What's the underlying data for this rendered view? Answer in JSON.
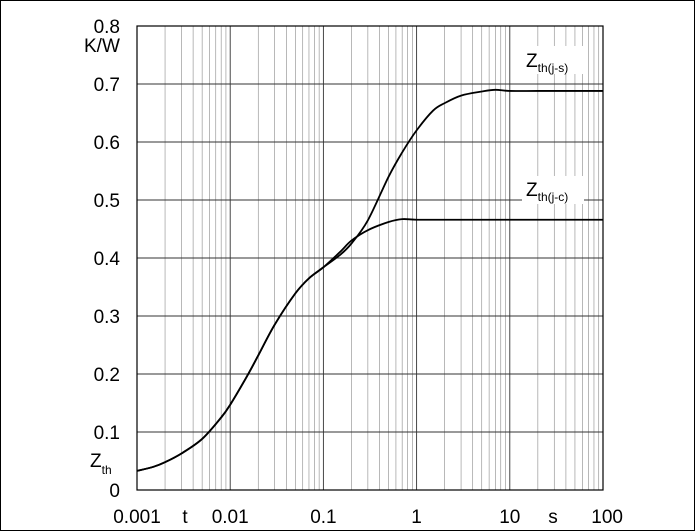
{
  "chart_data": {
    "type": "line",
    "xscale": "log",
    "xlim": [
      0.001,
      100
    ],
    "ylim": [
      0,
      0.8
    ],
    "grid": true,
    "y_unit": "K/W",
    "x_unit": "s",
    "ylabel_main": "Z",
    "ylabel_sub": "th",
    "xlabel": "t",
    "x_ticks": [
      "0.001",
      "0.01",
      "0.1",
      "1",
      "10",
      "100"
    ],
    "y_ticks": [
      "0",
      "0.1",
      "0.2",
      "0.3",
      "0.4",
      "0.5",
      "0.6",
      "0.7",
      "0.8"
    ],
    "series": [
      {
        "name_main": "Z",
        "name_sub": "th(j-s)",
        "x": [
          0.001,
          0.0015,
          0.002,
          0.003,
          0.005,
          0.008,
          0.01,
          0.015,
          0.02,
          0.03,
          0.05,
          0.07,
          0.1,
          0.15,
          0.2,
          0.3,
          0.5,
          0.7,
          1,
          1.5,
          2,
          3,
          5,
          7,
          10,
          20,
          50,
          100
        ],
        "y": [
          0.033,
          0.04,
          0.048,
          0.063,
          0.088,
          0.125,
          0.147,
          0.195,
          0.232,
          0.285,
          0.339,
          0.365,
          0.384,
          0.405,
          0.425,
          0.465,
          0.54,
          0.582,
          0.62,
          0.654,
          0.667,
          0.68,
          0.687,
          0.69,
          0.688,
          0.688,
          0.688,
          0.688
        ]
      },
      {
        "name_main": "Z",
        "name_sub": "th(j-c)",
        "x": [
          0.001,
          0.0015,
          0.002,
          0.003,
          0.005,
          0.008,
          0.01,
          0.015,
          0.02,
          0.03,
          0.05,
          0.07,
          0.1,
          0.15,
          0.2,
          0.3,
          0.5,
          0.7,
          1,
          2,
          5,
          10,
          100
        ],
        "y": [
          0.033,
          0.04,
          0.048,
          0.063,
          0.088,
          0.125,
          0.147,
          0.195,
          0.232,
          0.285,
          0.339,
          0.365,
          0.384,
          0.41,
          0.43,
          0.448,
          0.462,
          0.467,
          0.466,
          0.466,
          0.466,
          0.466,
          0.466
        ]
      }
    ]
  }
}
